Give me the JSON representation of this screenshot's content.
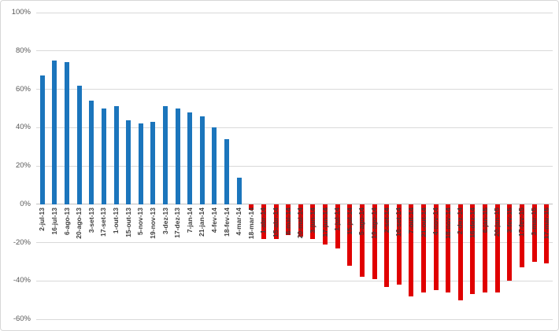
{
  "chart_data": {
    "type": "bar",
    "title": "",
    "unit": "%",
    "categories": [
      "2-jul-13",
      "16-jul-13",
      "6-ago-13",
      "20-ago-13",
      "3-set-13",
      "17-set-13",
      "1-out-13",
      "15-out-13",
      "5-nov-13",
      "19-nov-13",
      "3-dez-13",
      "17-dez-13",
      "7-jan-14",
      "21-jan-14",
      "4-fev-14",
      "18-fev-14",
      "4-mar-14",
      "18-mar-14",
      "1-abr-14",
      "15-abr-14",
      "6-mai-14",
      "20-mai-14",
      "3-jun-14",
      "17-jun-14",
      "1-jul-14",
      "15-jul-14",
      "5-ago-14",
      "19-ago-14",
      "2-set-14",
      "16-set-14",
      "7-out-14",
      "21-out-14",
      "4-nov-14",
      "18-nov-14",
      "2-dez-14",
      "16-dez-14",
      "6-jan-15",
      "20-jan-15",
      "3-fev-15",
      "17-fev-15",
      "3-mar-15",
      "17-mar-15"
    ],
    "values": [
      67,
      75,
      74,
      62,
      54,
      50,
      51,
      44,
      42,
      43,
      51,
      50,
      48,
      46,
      40,
      34,
      14,
      -3,
      -18,
      -18,
      -16,
      -17,
      -18,
      -21,
      -23,
      -32,
      -38,
      -39,
      -43,
      -42,
      -48,
      -46,
      -45,
      -46,
      -50,
      -47,
      -46,
      -46,
      -40,
      -33,
      -30,
      -31
    ],
    "ylim": [
      -60,
      100
    ],
    "ytick_step": 20,
    "ytick_labels": [
      "100%",
      "80%",
      "60%",
      "40%",
      "20%",
      "0%",
      "-20%",
      "-40%",
      "-60%"
    ],
    "grid": true,
    "legend": false,
    "colors": {
      "positive": "#1b75bc",
      "negative": "#e00000",
      "gridline": "#d9d9d9",
      "zero_axis": "#bfbfbf",
      "ytick_text": "#595959",
      "xlabel_text": "#3f3f3f",
      "background": "#ffffff"
    }
  }
}
